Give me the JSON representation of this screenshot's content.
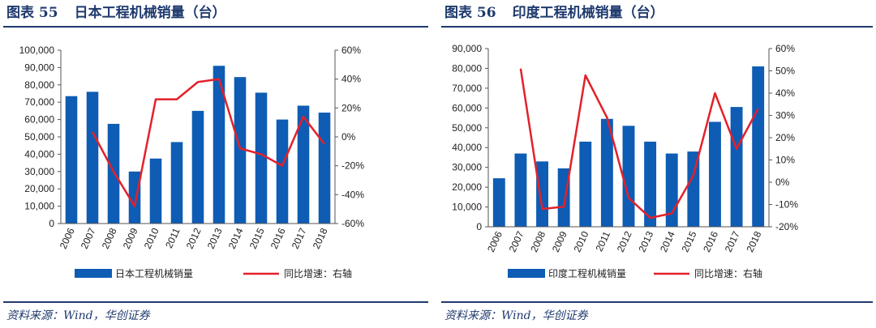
{
  "source_text": "资料来源：Wind，华创证券",
  "colors": {
    "bar": "#0e5cb4",
    "line": "#e3212a",
    "title": "#1f3a6e"
  },
  "charts": {
    "left": {
      "number": "图表 55",
      "name": "日本工程机械销量（台）",
      "source": "资料来源：Wind，华创证券"
    },
    "right": {
      "number": "图表 56",
      "name": "印度工程机械销量（台）",
      "source": "资料来源：Wind，华创证券"
    }
  },
  "chart_data": [
    {
      "type": "bar+line",
      "title": "图表 55 日本工程机械销量（台）",
      "categories": [
        "2006",
        "2007",
        "2008",
        "2009",
        "2010",
        "2011",
        "2012",
        "2013",
        "2014",
        "2015",
        "2016",
        "2017",
        "2018"
      ],
      "series": [
        {
          "name": "日本工程机械销量",
          "axis": "left",
          "kind": "bar",
          "values": [
            73500,
            76000,
            57500,
            30000,
            37500,
            47000,
            65000,
            91000,
            84500,
            75500,
            60000,
            68000,
            64000
          ]
        },
        {
          "name": "同比增速：右轴",
          "axis": "right",
          "kind": "line",
          "values": [
            null,
            3.5,
            -24,
            -48,
            26,
            26,
            38,
            40,
            -8,
            -12,
            -20,
            14,
            -5
          ]
        }
      ],
      "y_left": {
        "min": 0,
        "max": 100000,
        "step": 10000,
        "tick_labels": [
          "0",
          "10,000",
          "20,000",
          "30,000",
          "40,000",
          "50,000",
          "60,000",
          "70,000",
          "80,000",
          "90,000",
          "100,000"
        ]
      },
      "y_right": {
        "min": -60,
        "max": 60,
        "step": 20,
        "tick_labels": [
          "-60%",
          "-40%",
          "-20%",
          "0%",
          "20%",
          "40%",
          "60%"
        ]
      },
      "legend": [
        "日本工程机械销量",
        "同比增速：右轴"
      ]
    },
    {
      "type": "bar+line",
      "title": "图表 56 印度工程机械销量（台）",
      "categories": [
        "2006",
        "2007",
        "2008",
        "2009",
        "2010",
        "2011",
        "2012",
        "2013",
        "2014",
        "2015",
        "2016",
        "2017",
        "2018"
      ],
      "series": [
        {
          "name": "印度工程机械销量",
          "axis": "left",
          "kind": "bar",
          "values": [
            24500,
            37000,
            33000,
            29500,
            43000,
            54500,
            51000,
            43000,
            37000,
            38000,
            53000,
            60500,
            81000
          ]
        },
        {
          "name": "同比增速：右轴",
          "axis": "right",
          "kind": "line",
          "values": [
            null,
            51,
            -12,
            -11,
            48,
            29,
            -7,
            -16,
            -14,
            3,
            40,
            15,
            33
          ]
        }
      ],
      "y_left": {
        "min": 0,
        "max": 90000,
        "step": 10000,
        "tick_labels": [
          "0",
          "10,000",
          "20,000",
          "30,000",
          "40,000",
          "50,000",
          "60,000",
          "70,000",
          "80,000",
          "90,000"
        ]
      },
      "y_right": {
        "min": -20,
        "max": 60,
        "step": 10,
        "tick_labels": [
          "-20%",
          "-10%",
          "0%",
          "10%",
          "20%",
          "30%",
          "40%",
          "50%",
          "60%"
        ]
      },
      "legend": [
        "印度工程机械销量",
        "同比增速：右轴"
      ]
    }
  ]
}
